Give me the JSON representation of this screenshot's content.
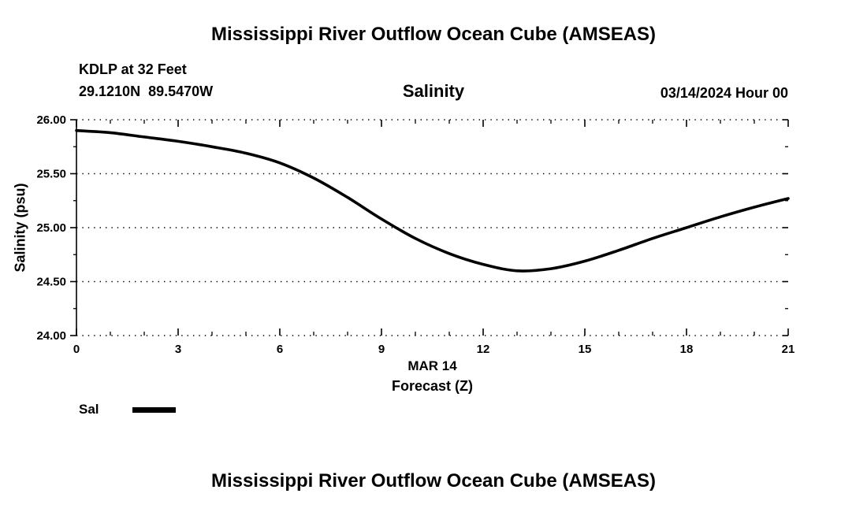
{
  "page": {
    "title_top": "Mississippi River Outflow Ocean Cube (AMSEAS)",
    "title_bottom": "Mississippi River Outflow Ocean Cube (AMSEAS)"
  },
  "header": {
    "station": "KDLP at 32 Feet",
    "coords": "29.1210N  89.5470W",
    "chart_title": "Salinity",
    "datetime": "03/14/2024 Hour 00"
  },
  "legend": {
    "label": "Sal"
  },
  "chart_data": {
    "type": "line",
    "title": "Salinity",
    "x_date_label": "MAR 14",
    "xlabel": "Forecast (Z)",
    "ylabel": "Salinity (psu)",
    "xlim": [
      0,
      21
    ],
    "ylim": [
      24.0,
      26.0
    ],
    "x_ticks": [
      0,
      3,
      6,
      9,
      12,
      15,
      18,
      21
    ],
    "y_ticks": [
      24.0,
      24.5,
      25.0,
      25.5,
      26.0
    ],
    "grid": "dotted-horizontal",
    "line_color": "#000000",
    "legend_position": "bottom-left",
    "x": [
      0,
      1,
      2,
      3,
      4,
      5,
      6,
      7,
      8,
      9,
      10,
      11,
      12,
      13,
      14,
      15,
      16,
      17,
      18,
      19,
      20,
      21
    ],
    "series": [
      {
        "name": "Sal",
        "values": [
          25.9,
          25.88,
          25.84,
          25.8,
          25.75,
          25.69,
          25.6,
          25.46,
          25.28,
          25.08,
          24.9,
          24.76,
          24.66,
          24.6,
          24.62,
          24.69,
          24.79,
          24.9,
          25.0,
          25.1,
          25.19,
          25.27
        ]
      }
    ]
  }
}
